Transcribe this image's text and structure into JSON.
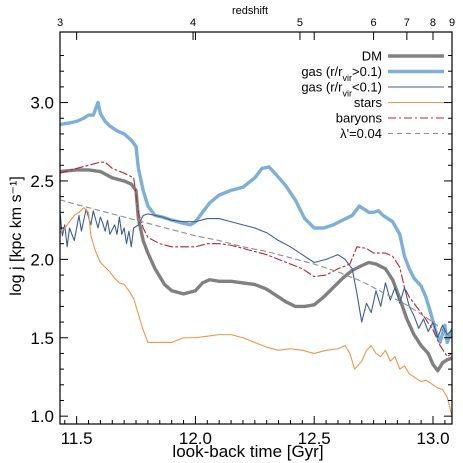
{
  "chart_data": {
    "type": "line",
    "title": "",
    "xlabel": "look-back time [Gyr]",
    "ylabel": "log j  [kpc km s⁻¹]",
    "top_axis_label": "redshift",
    "xlim": [
      11.43,
      13.08
    ],
    "ylim": [
      0.95,
      3.45
    ],
    "xticks": [
      11.5,
      12.0,
      12.5,
      13.0
    ],
    "xtick_labels": [
      "11.5",
      "12.0",
      "12.5",
      "13.0"
    ],
    "yticks": [
      1.0,
      1.5,
      2.0,
      2.5,
      3.0
    ],
    "ytick_labels": [
      "1.0",
      "1.5",
      "2.0",
      "2.5",
      "3.0"
    ],
    "top_ticks": [
      {
        "label": "3",
        "x": 11.43
      },
      {
        "label": "4",
        "x": 11.99
      },
      {
        "label": "5",
        "x": 12.44
      },
      {
        "label": "6",
        "x": 12.75
      },
      {
        "label": "7",
        "x": 12.89
      },
      {
        "label": "8",
        "x": 13.0
      },
      {
        "label": "9",
        "x": 13.08
      }
    ],
    "grid": false,
    "legend_position": "top-right",
    "series": [
      {
        "name": "DM",
        "color": "#808080",
        "width": 3.4,
        "dash": "",
        "points": [
          [
            11.43,
            2.56
          ],
          [
            11.5,
            2.57
          ],
          [
            11.55,
            2.57
          ],
          [
            11.6,
            2.56
          ],
          [
            11.65,
            2.52
          ],
          [
            11.7,
            2.5
          ],
          [
            11.73,
            2.48
          ],
          [
            11.75,
            2.44
          ],
          [
            11.76,
            2.26
          ],
          [
            11.78,
            2.12
          ],
          [
            11.8,
            2.04
          ],
          [
            11.83,
            1.94
          ],
          [
            11.87,
            1.84
          ],
          [
            11.9,
            1.8
          ],
          [
            11.95,
            1.78
          ],
          [
            12.0,
            1.8
          ],
          [
            12.03,
            1.85
          ],
          [
            12.06,
            1.87
          ],
          [
            12.1,
            1.86
          ],
          [
            12.15,
            1.86
          ],
          [
            12.2,
            1.85
          ],
          [
            12.25,
            1.84
          ],
          [
            12.3,
            1.81
          ],
          [
            12.34,
            1.77
          ],
          [
            12.38,
            1.73
          ],
          [
            12.42,
            1.7
          ],
          [
            12.46,
            1.7
          ],
          [
            12.5,
            1.71
          ],
          [
            12.54,
            1.76
          ],
          [
            12.58,
            1.82
          ],
          [
            12.62,
            1.88
          ],
          [
            12.66,
            1.93
          ],
          [
            12.7,
            1.96
          ],
          [
            12.73,
            1.98
          ],
          [
            12.76,
            1.97
          ],
          [
            12.8,
            1.94
          ],
          [
            12.83,
            1.87
          ],
          [
            12.86,
            1.75
          ],
          [
            12.89,
            1.62
          ],
          [
            12.92,
            1.52
          ],
          [
            12.95,
            1.45
          ],
          [
            12.98,
            1.4
          ],
          [
            13.0,
            1.33
          ],
          [
            13.02,
            1.29
          ],
          [
            13.04,
            1.34
          ],
          [
            13.06,
            1.36
          ],
          [
            13.08,
            1.37
          ]
        ]
      },
      {
        "name": "gas (r/r_vir>0.1)",
        "color": "#7db0d9",
        "width": 3.4,
        "dash": "",
        "points": [
          [
            11.43,
            2.86
          ],
          [
            11.47,
            2.87
          ],
          [
            11.5,
            2.88
          ],
          [
            11.53,
            2.9
          ],
          [
            11.55,
            2.92
          ],
          [
            11.57,
            2.92
          ],
          [
            11.59,
            3.0
          ],
          [
            11.6,
            2.93
          ],
          [
            11.62,
            2.88
          ],
          [
            11.64,
            2.85
          ],
          [
            11.67,
            2.82
          ],
          [
            11.7,
            2.8
          ],
          [
            11.73,
            2.76
          ],
          [
            11.75,
            2.72
          ],
          [
            11.76,
            2.58
          ],
          [
            11.78,
            2.44
          ],
          [
            11.8,
            2.34
          ],
          [
            11.83,
            2.28
          ],
          [
            11.86,
            2.27
          ],
          [
            11.9,
            2.25
          ],
          [
            11.95,
            2.23
          ],
          [
            11.98,
            2.22
          ],
          [
            12.0,
            2.24
          ],
          [
            12.03,
            2.3
          ],
          [
            12.06,
            2.36
          ],
          [
            12.1,
            2.41
          ],
          [
            12.15,
            2.44
          ],
          [
            12.2,
            2.46
          ],
          [
            12.25,
            2.52
          ],
          [
            12.28,
            2.58
          ],
          [
            12.31,
            2.59
          ],
          [
            12.34,
            2.54
          ],
          [
            12.38,
            2.47
          ],
          [
            12.42,
            2.38
          ],
          [
            12.46,
            2.26
          ],
          [
            12.5,
            2.2
          ],
          [
            12.54,
            2.2
          ],
          [
            12.58,
            2.22
          ],
          [
            12.62,
            2.25
          ],
          [
            12.66,
            2.28
          ],
          [
            12.69,
            2.34
          ],
          [
            12.71,
            2.32
          ],
          [
            12.73,
            2.3
          ],
          [
            12.75,
            2.3
          ],
          [
            12.77,
            2.31
          ],
          [
            12.79,
            2.28
          ],
          [
            12.81,
            2.26
          ],
          [
            12.83,
            2.24
          ],
          [
            12.86,
            2.16
          ],
          [
            12.88,
            2.02
          ],
          [
            12.9,
            1.94
          ],
          [
            12.92,
            1.88
          ],
          [
            12.95,
            1.83
          ],
          [
            12.97,
            1.76
          ],
          [
            12.99,
            1.66
          ],
          [
            13.01,
            1.55
          ],
          [
            13.03,
            1.47
          ],
          [
            13.05,
            1.58
          ],
          [
            13.06,
            1.47
          ],
          [
            13.08,
            1.55
          ]
        ]
      },
      {
        "name": "gas (r/r_vir<0.1)",
        "color": "#3c5f94",
        "width": 1.1,
        "dash": "",
        "points": [
          [
            11.43,
            2.3
          ],
          [
            11.44,
            2.15
          ],
          [
            11.45,
            2.22
          ],
          [
            11.46,
            2.08
          ],
          [
            11.47,
            2.2
          ],
          [
            11.49,
            2.12
          ],
          [
            11.51,
            2.28
          ],
          [
            11.52,
            2.18
          ],
          [
            11.54,
            2.32
          ],
          [
            11.56,
            2.22
          ],
          [
            11.57,
            2.31
          ],
          [
            11.59,
            2.2
          ],
          [
            11.6,
            2.27
          ],
          [
            11.61,
            2.23
          ],
          [
            11.62,
            2.18
          ],
          [
            11.63,
            2.25
          ],
          [
            11.64,
            2.16
          ],
          [
            11.66,
            2.22
          ],
          [
            11.67,
            2.16
          ],
          [
            11.68,
            2.27
          ],
          [
            11.69,
            2.16
          ],
          [
            11.7,
            2.2
          ],
          [
            11.71,
            2.1
          ],
          [
            11.72,
            2.18
          ],
          [
            11.73,
            2.08
          ],
          [
            11.74,
            2.2
          ],
          [
            11.76,
            2.22
          ],
          [
            11.78,
            2.28
          ],
          [
            11.8,
            2.29
          ],
          [
            11.83,
            2.28
          ],
          [
            11.86,
            2.27
          ],
          [
            11.9,
            2.25
          ],
          [
            11.95,
            2.24
          ],
          [
            12.0,
            2.24
          ],
          [
            12.05,
            2.26
          ],
          [
            12.1,
            2.26
          ],
          [
            12.15,
            2.24
          ],
          [
            12.2,
            2.22
          ],
          [
            12.25,
            2.2
          ],
          [
            12.3,
            2.17
          ],
          [
            12.35,
            2.12
          ],
          [
            12.4,
            2.08
          ],
          [
            12.45,
            2.03
          ],
          [
            12.5,
            1.98
          ],
          [
            12.55,
            2.0
          ],
          [
            12.6,
            2.03
          ],
          [
            12.63,
            2.0
          ],
          [
            12.66,
            1.94
          ],
          [
            12.68,
            1.78
          ],
          [
            12.7,
            1.6
          ],
          [
            12.72,
            1.72
          ],
          [
            12.74,
            1.66
          ],
          [
            12.76,
            1.8
          ],
          [
            12.78,
            1.7
          ],
          [
            12.8,
            1.85
          ],
          [
            12.82,
            1.74
          ],
          [
            12.84,
            1.82
          ],
          [
            12.86,
            1.72
          ],
          [
            12.88,
            1.82
          ],
          [
            12.9,
            1.7
          ],
          [
            12.92,
            1.64
          ],
          [
            12.94,
            1.56
          ],
          [
            12.96,
            1.62
          ],
          [
            12.98,
            1.54
          ],
          [
            13.0,
            1.6
          ],
          [
            13.02,
            1.5
          ],
          [
            13.04,
            1.58
          ],
          [
            13.06,
            1.52
          ],
          [
            13.08,
            1.55
          ]
        ]
      },
      {
        "name": "stars",
        "color": "#f0954a",
        "width": 1.1,
        "dash": "",
        "points": [
          [
            11.43,
            2.17
          ],
          [
            11.45,
            2.2
          ],
          [
            11.47,
            2.24
          ],
          [
            11.49,
            2.28
          ],
          [
            11.51,
            2.3
          ],
          [
            11.53,
            2.33
          ],
          [
            11.55,
            2.3
          ],
          [
            11.56,
            2.15
          ],
          [
            11.58,
            2.05
          ],
          [
            11.6,
            1.98
          ],
          [
            11.62,
            1.95
          ],
          [
            11.64,
            1.92
          ],
          [
            11.66,
            1.88
          ],
          [
            11.68,
            1.85
          ],
          [
            11.7,
            1.84
          ],
          [
            11.72,
            1.8
          ],
          [
            11.74,
            1.75
          ],
          [
            11.76,
            1.65
          ],
          [
            11.78,
            1.55
          ],
          [
            11.8,
            1.47
          ],
          [
            11.85,
            1.47
          ],
          [
            11.9,
            1.47
          ],
          [
            11.95,
            1.5
          ],
          [
            12.0,
            1.5
          ],
          [
            12.05,
            1.51
          ],
          [
            12.1,
            1.52
          ],
          [
            12.15,
            1.52
          ],
          [
            12.2,
            1.5
          ],
          [
            12.25,
            1.47
          ],
          [
            12.3,
            1.44
          ],
          [
            12.35,
            1.42
          ],
          [
            12.4,
            1.43
          ],
          [
            12.45,
            1.42
          ],
          [
            12.5,
            1.4
          ],
          [
            12.55,
            1.42
          ],
          [
            12.6,
            1.43
          ],
          [
            12.63,
            1.45
          ],
          [
            12.65,
            1.4
          ],
          [
            12.67,
            1.3
          ],
          [
            12.7,
            1.35
          ],
          [
            12.72,
            1.42
          ],
          [
            12.74,
            1.45
          ],
          [
            12.76,
            1.4
          ],
          [
            12.78,
            1.38
          ],
          [
            12.8,
            1.42
          ],
          [
            12.82,
            1.35
          ],
          [
            12.84,
            1.38
          ],
          [
            12.86,
            1.3
          ],
          [
            12.88,
            1.32
          ],
          [
            12.9,
            1.27
          ],
          [
            12.92,
            1.25
          ],
          [
            12.95,
            1.22
          ],
          [
            12.97,
            1.23
          ],
          [
            13.0,
            1.2
          ],
          [
            13.02,
            1.18
          ],
          [
            13.04,
            1.17
          ],
          [
            13.06,
            1.12
          ],
          [
            13.08,
            1.0
          ]
        ]
      },
      {
        "name": "baryons",
        "color": "#b5262e",
        "width": 1.1,
        "dash": "8,3,2,3",
        "points": [
          [
            11.43,
            2.55
          ],
          [
            11.5,
            2.58
          ],
          [
            11.55,
            2.6
          ],
          [
            11.6,
            2.62
          ],
          [
            11.62,
            2.62
          ],
          [
            11.65,
            2.58
          ],
          [
            11.7,
            2.55
          ],
          [
            11.74,
            2.52
          ],
          [
            11.76,
            2.3
          ],
          [
            11.78,
            2.2
          ],
          [
            11.8,
            2.14
          ],
          [
            11.85,
            2.1
          ],
          [
            11.9,
            2.08
          ],
          [
            11.95,
            2.08
          ],
          [
            12.0,
            2.08
          ],
          [
            12.05,
            2.1
          ],
          [
            12.1,
            2.1
          ],
          [
            12.15,
            2.09
          ],
          [
            12.2,
            2.07
          ],
          [
            12.25,
            2.05
          ],
          [
            12.3,
            2.03
          ],
          [
            12.35,
            2.0
          ],
          [
            12.4,
            1.97
          ],
          [
            12.45,
            1.94
          ],
          [
            12.5,
            1.89
          ],
          [
            12.55,
            1.9
          ],
          [
            12.6,
            1.94
          ],
          [
            12.65,
            1.97
          ],
          [
            12.68,
            2.08
          ],
          [
            12.72,
            2.07
          ],
          [
            12.75,
            2.04
          ],
          [
            12.8,
            2.04
          ],
          [
            12.83,
            2.02
          ],
          [
            12.86,
            1.95
          ],
          [
            12.88,
            1.82
          ],
          [
            12.9,
            1.76
          ],
          [
            12.93,
            1.7
          ],
          [
            12.96,
            1.64
          ],
          [
            13.0,
            1.55
          ],
          [
            13.03,
            1.45
          ],
          [
            13.06,
            1.38
          ],
          [
            13.08,
            1.4
          ]
        ]
      },
      {
        "name": "λ'=0.04",
        "color": "#8e8e8e",
        "width": 1.1,
        "dash": "5,4",
        "points": [
          [
            11.43,
            2.38
          ],
          [
            11.5,
            2.35
          ],
          [
            11.6,
            2.31
          ],
          [
            11.7,
            2.27
          ],
          [
            11.8,
            2.23
          ],
          [
            11.9,
            2.19
          ],
          [
            12.0,
            2.15
          ],
          [
            12.1,
            2.12
          ],
          [
            12.2,
            2.08
          ],
          [
            12.3,
            2.05
          ],
          [
            12.4,
            2.01
          ],
          [
            12.5,
            1.97
          ],
          [
            12.6,
            1.92
          ],
          [
            12.7,
            1.86
          ],
          [
            12.8,
            1.78
          ],
          [
            12.9,
            1.7
          ],
          [
            13.0,
            1.6
          ],
          [
            13.08,
            1.5
          ]
        ]
      }
    ]
  }
}
